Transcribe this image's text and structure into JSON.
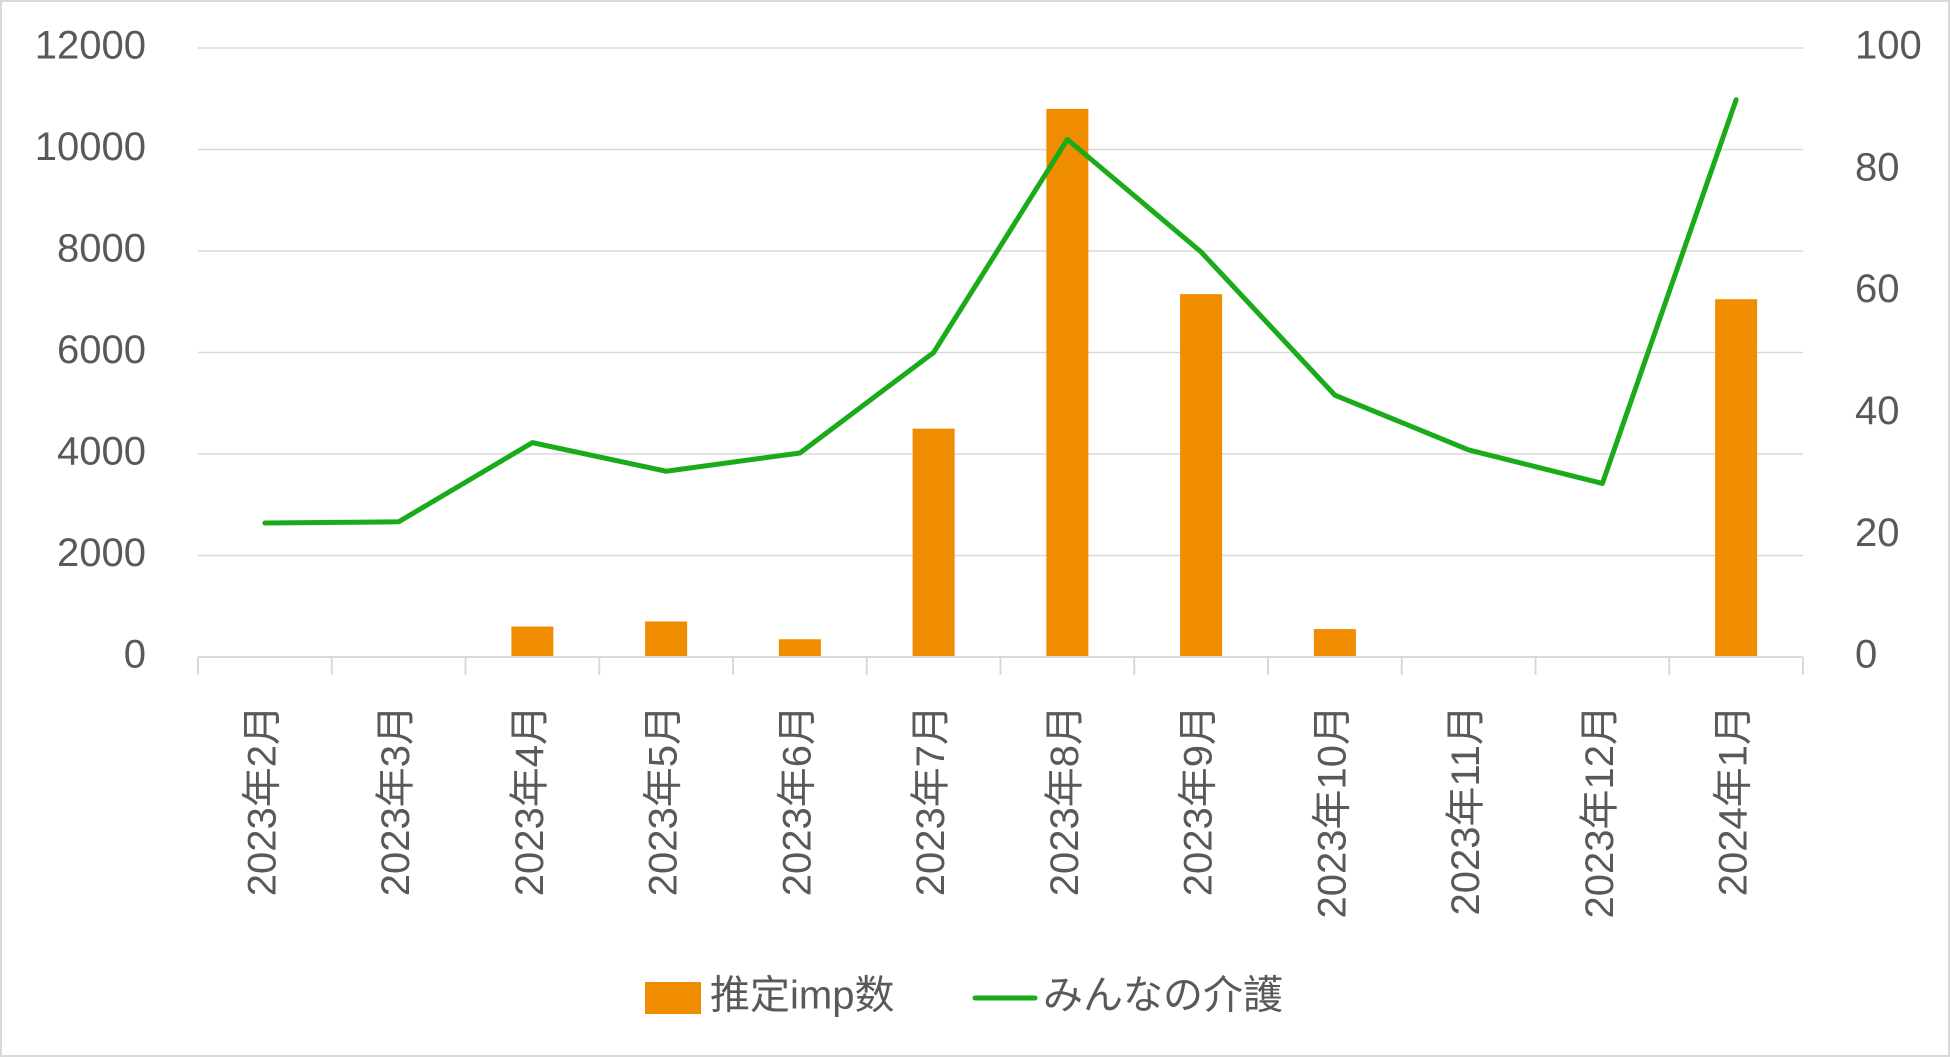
{
  "chart_data": {
    "type": "bar",
    "categories": [
      "2023年2月",
      "2023年3月",
      "2023年4月",
      "2023年5月",
      "2023年6月",
      "2023年7月",
      "2023年8月",
      "2023年9月",
      "2023年10月",
      "2023年11月",
      "2023年12月",
      "2024年1月"
    ],
    "series": [
      {
        "name": "推定imp数",
        "type": "bar",
        "axis": "left",
        "color": "#f08c00",
        "values": [
          0,
          0,
          600,
          700,
          350,
          4500,
          10800,
          7150,
          550,
          0,
          0,
          7050
        ]
      },
      {
        "name": "みんなの介護",
        "type": "line",
        "axis": "right",
        "color": "#1aab1a",
        "values": [
          22,
          22.2,
          35.2,
          30.5,
          33.5,
          50,
          85,
          66.5,
          43,
          34,
          28.5,
          91.5
        ]
      }
    ],
    "y_left": {
      "range": [
        0,
        12000
      ],
      "ticks": [
        0,
        2000,
        4000,
        6000,
        8000,
        10000,
        12000
      ]
    },
    "y_right": {
      "range": [
        0,
        100
      ],
      "ticks": [
        0,
        20,
        40,
        60,
        80,
        100
      ]
    },
    "grid": true,
    "legend": "bottom"
  }
}
